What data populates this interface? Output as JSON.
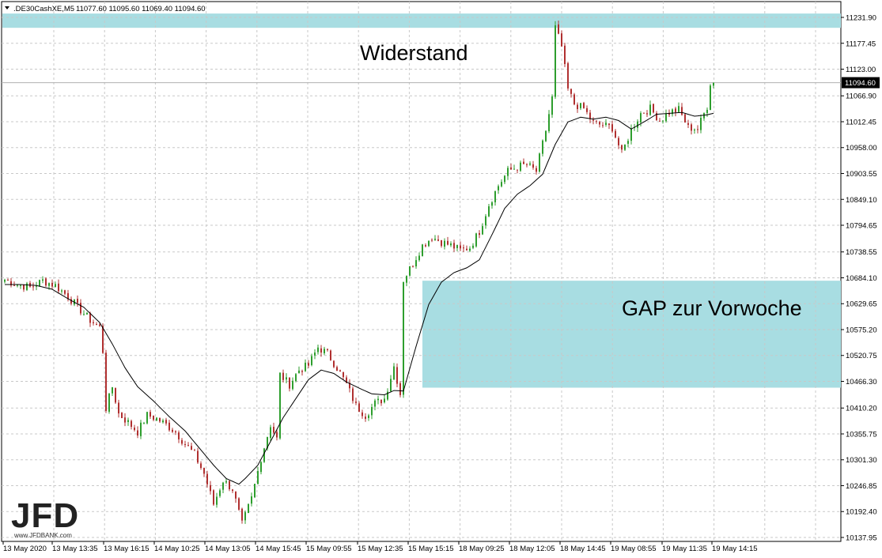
{
  "header": {
    "symbol": ".DE30CashXE,M5",
    "ohlc": "11077.60 11095.60 11069.40 11094.60"
  },
  "annotations": {
    "resistance_label": "Widerstand",
    "gap_label": "GAP zur Vorwoche"
  },
  "logo": {
    "text": "JFD",
    "subtext": "www.JFDBANK.com"
  },
  "colors": {
    "up": "#2e9e2e",
    "down": "#b03030",
    "zone": "#a8dde2",
    "grid": "#c8c8c8",
    "ma": "#000000"
  },
  "chart_data": {
    "type": "candlestick",
    "timeframe": "M5",
    "current_price": 11094.6,
    "current_price_label": "11094.60",
    "y_ticks": [
      {
        "v": 11231.9,
        "label": "11231.90"
      },
      {
        "v": 11177.45,
        "label": "11177.45"
      },
      {
        "v": 11123.0,
        "label": "11123.00"
      },
      {
        "v": 11066.9,
        "label": "11066.90"
      },
      {
        "v": 11012.45,
        "label": "11012.45"
      },
      {
        "v": 10958.0,
        "label": "10958.00"
      },
      {
        "v": 10903.55,
        "label": "10903.55"
      },
      {
        "v": 10849.1,
        "label": "10849.10"
      },
      {
        "v": 10794.65,
        "label": "10794.65"
      },
      {
        "v": 10738.55,
        "label": "10738.55"
      },
      {
        "v": 10684.1,
        "label": "10684.10"
      },
      {
        "v": 10629.65,
        "label": "10629.65"
      },
      {
        "v": 10575.2,
        "label": "10575.20"
      },
      {
        "v": 10520.75,
        "label": "10520.75"
      },
      {
        "v": 10466.3,
        "label": "10466.30"
      },
      {
        "v": 10410.2,
        "label": "10410.20"
      },
      {
        "v": 10355.75,
        "label": "10355.75"
      },
      {
        "v": 10301.3,
        "label": "10301.30"
      },
      {
        "v": 10246.85,
        "label": "10246.85"
      },
      {
        "v": 10192.4,
        "label": "10192.40"
      },
      {
        "v": 10137.95,
        "label": "10137.95"
      }
    ],
    "x_labels": [
      "13 May 2020",
      "13 May 13:35",
      "13 May 16:15",
      "14 May 10:25",
      "14 May 13:05",
      "14 May 15:45",
      "15 May 09:55",
      "15 May 12:35",
      "15 May 15:15",
      "18 May 09:25",
      "18 May 12:05",
      "18 May 14:45",
      "19 May 08:55",
      "19 May 11:35",
      "19 May 14:15"
    ],
    "zones": [
      {
        "name": "Widerstand",
        "from": 11210,
        "to": 11240
      },
      {
        "name": "GAP zur Vorwoche",
        "from": 10453,
        "to": 10678
      }
    ],
    "path_points": [
      [
        0,
        10680
      ],
      [
        4,
        10670
      ],
      [
        8,
        10664
      ],
      [
        12,
        10678
      ],
      [
        16,
        10668
      ],
      [
        20,
        10645
      ],
      [
        24,
        10616
      ],
      [
        27,
        10595
      ],
      [
        30,
        10580
      ],
      [
        31,
        10530
      ],
      [
        32,
        10410
      ],
      [
        34,
        10455
      ],
      [
        36,
        10398
      ],
      [
        39,
        10380
      ],
      [
        42,
        10360
      ],
      [
        45,
        10395
      ],
      [
        48,
        10388
      ],
      [
        51,
        10375
      ],
      [
        54,
        10360
      ],
      [
        57,
        10335
      ],
      [
        60,
        10312
      ],
      [
        63,
        10272
      ],
      [
        66,
        10208
      ],
      [
        69,
        10258
      ],
      [
        72,
        10240
      ],
      [
        75,
        10165
      ],
      [
        78,
        10220
      ],
      [
        81,
        10305
      ],
      [
        84,
        10375
      ],
      [
        86,
        10345
      ],
      [
        87,
        10480
      ],
      [
        90,
        10460
      ],
      [
        93,
        10490
      ],
      [
        96,
        10500
      ],
      [
        99,
        10538
      ],
      [
        102,
        10525
      ],
      [
        105,
        10495
      ],
      [
        108,
        10460
      ],
      [
        111,
        10415
      ],
      [
        114,
        10395
      ],
      [
        117,
        10420
      ],
      [
        120,
        10430
      ],
      [
        123,
        10498
      ],
      [
        125,
        10440
      ],
      [
        126,
        10680
      ],
      [
        129,
        10715
      ],
      [
        132,
        10752
      ],
      [
        135,
        10770
      ],
      [
        138,
        10760
      ],
      [
        141,
        10752
      ],
      [
        144,
        10742
      ],
      [
        147,
        10748
      ],
      [
        150,
        10782
      ],
      [
        153,
        10838
      ],
      [
        156,
        10878
      ],
      [
        159,
        10908
      ],
      [
        162,
        10918
      ],
      [
        165,
        10922
      ],
      [
        168,
        10908
      ],
      [
        171,
        10995
      ],
      [
        173,
        11062
      ],
      [
        174,
        11210
      ],
      [
        176,
        11170
      ],
      [
        178,
        11080
      ],
      [
        180,
        11050
      ],
      [
        183,
        11040
      ],
      [
        186,
        11010
      ],
      [
        189,
        11005
      ],
      [
        192,
        11000
      ],
      [
        195,
        10945
      ],
      [
        198,
        10995
      ],
      [
        201,
        11030
      ],
      [
        204,
        11040
      ],
      [
        207,
        11015
      ],
      [
        210,
        11032
      ],
      [
        213,
        11038
      ],
      [
        216,
        11000
      ],
      [
        219,
        10998
      ],
      [
        222,
        11045
      ],
      [
        223,
        11094.6
      ]
    ],
    "ma_points": [
      [
        0,
        10670
      ],
      [
        5,
        10670
      ],
      [
        10,
        10668
      ],
      [
        15,
        10660
      ],
      [
        20,
        10640
      ],
      [
        25,
        10622
      ],
      [
        30,
        10590
      ],
      [
        34,
        10545
      ],
      [
        38,
        10495
      ],
      [
        42,
        10455
      ],
      [
        47,
        10425
      ],
      [
        52,
        10392
      ],
      [
        57,
        10362
      ],
      [
        62,
        10322
      ],
      [
        66,
        10290
      ],
      [
        70,
        10262
      ],
      [
        74,
        10250
      ],
      [
        76,
        10262
      ],
      [
        80,
        10290
      ],
      [
        84,
        10340
      ],
      [
        88,
        10390
      ],
      [
        92,
        10430
      ],
      [
        96,
        10470
      ],
      [
        100,
        10490
      ],
      [
        104,
        10483
      ],
      [
        108,
        10465
      ],
      [
        112,
        10452
      ],
      [
        116,
        10440
      ],
      [
        120,
        10438
      ],
      [
        123,
        10447
      ],
      [
        126,
        10446
      ],
      [
        130,
        10540
      ],
      [
        134,
        10628
      ],
      [
        138,
        10675
      ],
      [
        142,
        10695
      ],
      [
        146,
        10705
      ],
      [
        150,
        10722
      ],
      [
        154,
        10775
      ],
      [
        158,
        10830
      ],
      [
        162,
        10860
      ],
      [
        166,
        10878
      ],
      [
        170,
        10902
      ],
      [
        174,
        10965
      ],
      [
        178,
        11012
      ],
      [
        182,
        11022
      ],
      [
        186,
        11018
      ],
      [
        190,
        11022
      ],
      [
        194,
        11015
      ],
      [
        198,
        10997
      ],
      [
        202,
        11012
      ],
      [
        206,
        11028
      ],
      [
        210,
        11030
      ],
      [
        214,
        11032
      ],
      [
        218,
        11024
      ],
      [
        222,
        11027
      ],
      [
        224,
        11030
      ]
    ]
  }
}
